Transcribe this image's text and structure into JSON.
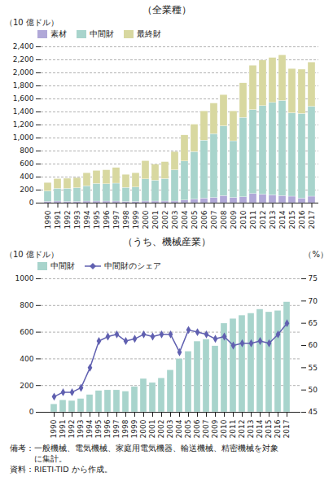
{
  "chart_data": [
    {
      "type": "bar",
      "stacked": true,
      "title": "（全業種）",
      "ylabel": "（10 億ドル）",
      "categories": [
        1990,
        1991,
        1992,
        1993,
        1994,
        1995,
        1996,
        1997,
        1998,
        1999,
        2000,
        2001,
        2002,
        2003,
        2004,
        2005,
        2006,
        2007,
        2008,
        2009,
        2010,
        2011,
        2012,
        2013,
        2014,
        2015,
        2016,
        2017
      ],
      "series": [
        {
          "name": "素材",
          "color": "#b0a8d8",
          "values": [
            20,
            25,
            20,
            20,
            25,
            25,
            25,
            25,
            20,
            20,
            25,
            25,
            25,
            25,
            40,
            55,
            70,
            80,
            110,
            80,
            90,
            140,
            130,
            120,
            110,
            100,
            70,
            100
          ]
        },
        {
          "name": "中間財",
          "color": "#a8d4cc",
          "values": [
            160,
            195,
            200,
            210,
            235,
            270,
            265,
            275,
            215,
            220,
            340,
            320,
            345,
            480,
            600,
            730,
            890,
            980,
            1070,
            870,
            1220,
            1290,
            1360,
            1420,
            1460,
            1280,
            1300,
            1380
          ]
        },
        {
          "name": "最終財",
          "color": "#d8d8a0",
          "values": [
            130,
            150,
            155,
            155,
            200,
            200,
            215,
            240,
            200,
            220,
            280,
            245,
            260,
            280,
            400,
            420,
            450,
            470,
            480,
            460,
            530,
            680,
            700,
            690,
            700,
            680,
            680,
            680
          ]
        }
      ],
      "ylim": [
        0,
        2400
      ],
      "yticks": [
        0,
        200,
        400,
        600,
        800,
        {
          "value": 1000,
          "label": "1,000"
        },
        {
          "value": 1200,
          "label": "1,200"
        },
        {
          "value": 1400,
          "label": "1,400"
        },
        {
          "value": 1600,
          "label": "1,600"
        },
        {
          "value": 1800,
          "label": "1,800"
        },
        {
          "value": 2000,
          "label": "2,000"
        },
        {
          "value": 2200,
          "label": "2,200"
        },
        {
          "value": 2400,
          "label": "2,400"
        }
      ],
      "grid": true,
      "legend": "upper left"
    },
    {
      "type": "bar",
      "title": "（うち、機械産業）",
      "ylabel": "（10 億ドル）",
      "y2label": "（%）",
      "categories": [
        1990,
        1991,
        1992,
        1993,
        1994,
        1995,
        1996,
        1997,
        1998,
        1999,
        2000,
        2001,
        2002,
        2003,
        2004,
        2005,
        2006,
        2007,
        2009,
        2010,
        2011,
        2012,
        2013,
        2014,
        2015,
        2016,
        2017
      ],
      "series": [
        {
          "name": "中間財",
          "type": "bar",
          "color": "#a8d4cc",
          "values": [
            60,
            90,
            85,
            100,
            130,
            160,
            165,
            165,
            155,
            190,
            250,
            220,
            255,
            315,
            400,
            455,
            530,
            545,
            495,
            665,
            700,
            725,
            740,
            770,
            750,
            760,
            825
          ]
        },
        {
          "name": "中間財のシェア",
          "type": "line",
          "marker": "diamond",
          "axis": "y2",
          "color": "#6060b0",
          "values": [
            48.5,
            49.5,
            49.5,
            50.5,
            55.0,
            61.0,
            62.0,
            62.5,
            61.0,
            61.5,
            62.5,
            62.0,
            62.5,
            62.5,
            58.5,
            63.5,
            63.0,
            62.5,
            61.5,
            62.0,
            60.0,
            60.5,
            60.5,
            61.0,
            60.5,
            62.5,
            65.0
          ]
        }
      ],
      "ylim": [
        0,
        1000
      ],
      "yticks": [
        0,
        200,
        400,
        600,
        800,
        1000
      ],
      "y2lim": [
        45,
        75
      ],
      "y2ticks": [
        45,
        50,
        55,
        60,
        65,
        70,
        75
      ],
      "grid": true,
      "legend": "upper left",
      "annotations": [
        "備考：一般機械、電気機械、家庭用電気機器、輸送機械、精密機械を対象",
        "　　　に集計。",
        "資料：RIETI-TID から作成。"
      ]
    }
  ]
}
